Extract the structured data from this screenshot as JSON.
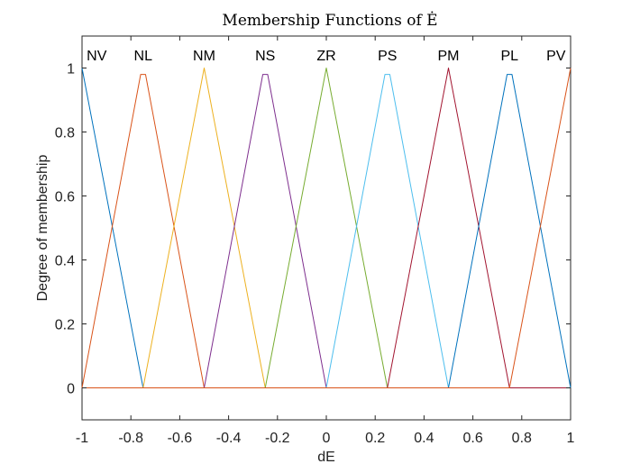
{
  "chart_data": {
    "type": "line",
    "title": "Membership Functions of Ė",
    "xlabel": "dE",
    "ylabel": "Degree of membership",
    "xlim": [
      -1,
      1
    ],
    "ylim": [
      -0.1,
      1.1
    ],
    "xticks": [
      -1,
      -0.8,
      -0.6,
      -0.4,
      -0.2,
      0,
      0.2,
      0.4,
      0.6,
      0.8,
      1
    ],
    "xtick_labels": [
      "-1",
      "-0.8",
      "-0.6",
      "-0.4",
      "-0.2",
      "0",
      "0.2",
      "0.4",
      "0.6",
      "0.8",
      "1"
    ],
    "yticks": [
      0,
      0.2,
      0.4,
      0.6,
      0.8,
      1
    ],
    "ytick_labels": [
      "0",
      "0.2",
      "0.4",
      "0.6",
      "0.8",
      "1"
    ],
    "grid": false,
    "series": [
      {
        "name": "NV",
        "color": "#0072BD",
        "points": [
          [
            -1,
            1
          ],
          [
            -0.75,
            0
          ],
          [
            1,
            0
          ]
        ]
      },
      {
        "name": "NL",
        "color": "#D95319",
        "points": [
          [
            -1,
            0
          ],
          [
            -0.76,
            0.98
          ],
          [
            -0.74,
            0.98
          ],
          [
            -0.5,
            0
          ],
          [
            1,
            0
          ]
        ]
      },
      {
        "name": "NM",
        "color": "#EDB120",
        "points": [
          [
            -1,
            0
          ],
          [
            -0.75,
            0
          ],
          [
            -0.5,
            1
          ],
          [
            -0.25,
            0
          ],
          [
            1,
            0
          ]
        ]
      },
      {
        "name": "NS",
        "color": "#7E2F8E",
        "points": [
          [
            -1,
            0
          ],
          [
            -0.5,
            0
          ],
          [
            -0.26,
            0.98
          ],
          [
            -0.24,
            0.98
          ],
          [
            0,
            0
          ],
          [
            1,
            0
          ]
        ]
      },
      {
        "name": "ZR",
        "color": "#77AC30",
        "points": [
          [
            -1,
            0
          ],
          [
            -0.25,
            0
          ],
          [
            0,
            1
          ],
          [
            0.25,
            0
          ],
          [
            1,
            0
          ]
        ]
      },
      {
        "name": "PS",
        "color": "#4DBEEE",
        "points": [
          [
            -1,
            0
          ],
          [
            0,
            0
          ],
          [
            0.24,
            0.98
          ],
          [
            0.26,
            0.98
          ],
          [
            0.5,
            0
          ],
          [
            1,
            0
          ]
        ]
      },
      {
        "name": "PM",
        "color": "#A2142F",
        "points": [
          [
            -1,
            0
          ],
          [
            0.25,
            0
          ],
          [
            0.5,
            1
          ],
          [
            0.75,
            0
          ],
          [
            1,
            0
          ]
        ]
      },
      {
        "name": "PL",
        "color": "#0072BD",
        "points": [
          [
            -1,
            0
          ],
          [
            0.5,
            0
          ],
          [
            0.74,
            0.98
          ],
          [
            0.76,
            0.98
          ],
          [
            1,
            0
          ]
        ]
      },
      {
        "name": "PV",
        "color": "#D95319",
        "points": [
          [
            -1,
            0
          ],
          [
            0.75,
            0
          ],
          [
            1,
            1
          ]
        ]
      }
    ],
    "mf_labels": [
      {
        "text": "NV",
        "x": -0.94
      },
      {
        "text": "NL",
        "x": -0.75
      },
      {
        "text": "NM",
        "x": -0.5
      },
      {
        "text": "NS",
        "x": -0.25
      },
      {
        "text": "ZR",
        "x": 0
      },
      {
        "text": "PS",
        "x": 0.25
      },
      {
        "text": "PM",
        "x": 0.5
      },
      {
        "text": "PL",
        "x": 0.75
      },
      {
        "text": "PV",
        "x": 0.94
      }
    ]
  }
}
